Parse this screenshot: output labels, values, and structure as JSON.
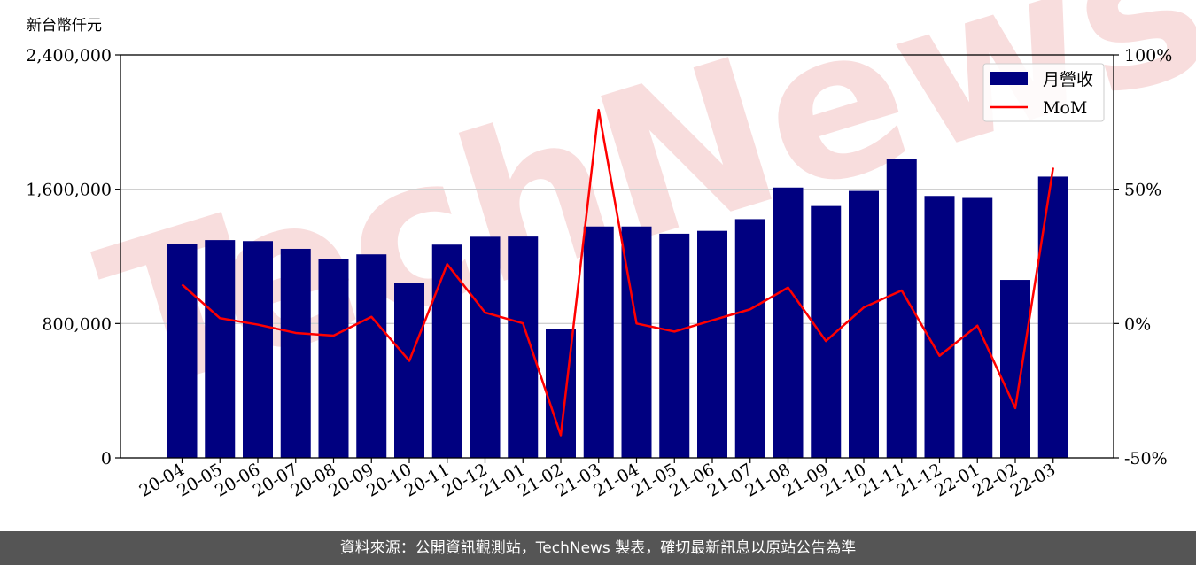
{
  "unit_label": "新台幣仟元",
  "footer_text": "資料來源：公開資訊觀測站，TechNews 製表，確切最新訊息以原站公告為準",
  "watermark": "TechNews",
  "colors": {
    "bar": "#000080",
    "line": "#ff0000",
    "grid": "#d0d0d0",
    "watermark": "#f7d9d9",
    "footer_bg": "#555555"
  },
  "chart_data": {
    "type": "bar",
    "categories": [
      "20-04",
      "20-05",
      "20-06",
      "20-07",
      "20-08",
      "20-09",
      "20-10",
      "20-11",
      "20-12",
      "21-01",
      "21-02",
      "21-03",
      "21-04",
      "21-05",
      "21-06",
      "21-07",
      "21-08",
      "21-09",
      "21-10",
      "21-11",
      "21-12",
      "22-01",
      "22-02",
      "22-03"
    ],
    "series": [
      {
        "name": "月營收",
        "axis": "left",
        "kind": "bar",
        "values": [
          1275000,
          1297000,
          1291000,
          1245000,
          1185000,
          1212000,
          1040000,
          1270000,
          1317000,
          1318000,
          767000,
          1378000,
          1378000,
          1335000,
          1352000,
          1422000,
          1610000,
          1500000,
          1590000,
          1780000,
          1560000,
          1548000,
          1060000,
          1675000
        ]
      },
      {
        "name": "MoM",
        "axis": "right",
        "kind": "line",
        "unit": "%",
        "values": [
          14.5,
          2.0,
          -0.4,
          -3.5,
          -4.5,
          2.5,
          -13.9,
          22.1,
          4.1,
          0.1,
          -41.6,
          79.5,
          0.0,
          -3.0,
          1.2,
          5.3,
          13.4,
          -6.5,
          6.0,
          12.3,
          -12.0,
          -0.8,
          -31.5,
          58.0
        ]
      }
    ],
    "y_left": {
      "min": 0,
      "max": 2400000,
      "ticks": [
        0,
        800000,
        1600000,
        2400000
      ],
      "tick_labels": [
        "0",
        "800,000",
        "1,600,000",
        "2,400,000"
      ]
    },
    "y_right": {
      "min": -50,
      "max": 100,
      "ticks": [
        -50,
        0,
        50,
        100
      ],
      "tick_labels": [
        "-50%",
        "0%",
        "50%",
        "100%"
      ]
    },
    "grid": "horizontal",
    "legend": "top-right"
  }
}
